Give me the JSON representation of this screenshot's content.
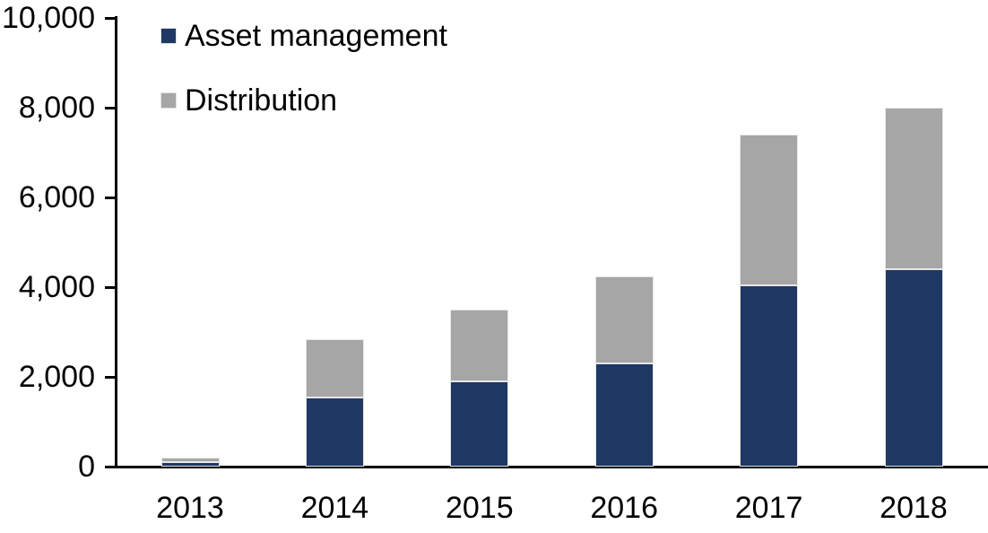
{
  "chart_data": {
    "type": "bar",
    "stacked": true,
    "title": "",
    "xlabel": "",
    "ylabel": "",
    "categories": [
      "2013",
      "2014",
      "2015",
      "2016",
      "2017",
      "2018"
    ],
    "series": [
      {
        "name": "Asset management",
        "color": "#1F3864",
        "values": [
          100,
          1550,
          1900,
          2300,
          4050,
          4400
        ]
      },
      {
        "name": "Distribution",
        "color": "#A6A6A6",
        "values": [
          100,
          1300,
          1600,
          1950,
          3350,
          3600
        ]
      }
    ],
    "totals": [
      200,
      2850,
      3500,
      4250,
      7400,
      8000
    ],
    "y_tick_labels": [
      "0",
      "2,000",
      "4,000",
      "6,000",
      "8,000",
      "10,000"
    ],
    "y_tick_values": [
      0,
      2000,
      4000,
      6000,
      8000,
      10000
    ],
    "ylim": [
      0,
      10000
    ],
    "grid": false,
    "legend_position": "top-left",
    "axis_color": "#000000",
    "text_color": "#000000",
    "background_color": "#FFFFFF"
  }
}
